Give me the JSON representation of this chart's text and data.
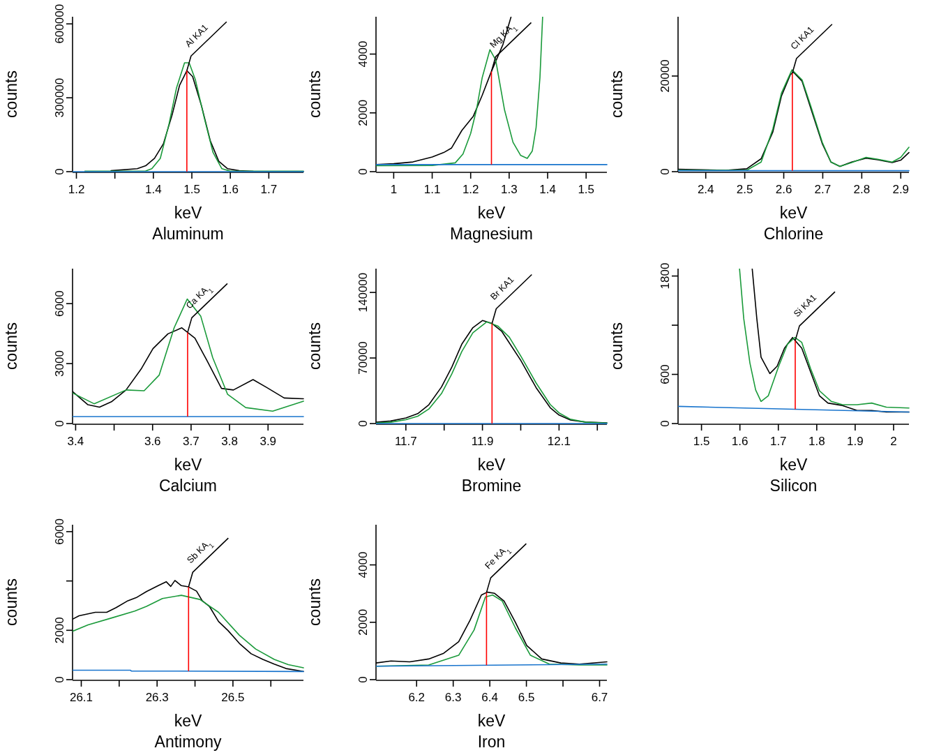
{
  "chart_data": [
    {
      "type": "line",
      "title": "Aluminum",
      "xlabel": "keV",
      "ylabel": "counts",
      "xlim": [
        1.19,
        1.79
      ],
      "ylim": [
        0,
        629000
      ],
      "xticks": [
        1.2,
        {
          "value": 1.3,
          "label": null
        },
        1.4,
        1.5,
        1.6,
        1.7
      ],
      "yticks": [
        0,
        300000,
        600000
      ],
      "series": [
        {
          "color": "#000000",
          "x": [
            1.29,
            1.358,
            1.38,
            1.403,
            1.426,
            1.449,
            1.468,
            1.487,
            1.502,
            1.525,
            1.548,
            1.57,
            1.593,
            1.623,
            1.66,
            1.79
          ],
          "values": [
            4000,
            12000,
            24000,
            54000,
            113000,
            232000,
            350000,
            410000,
            386000,
            268000,
            125000,
            42000,
            12000,
            4000,
            1000,
            0
          ]
        },
        {
          "color": "#1a9a3a",
          "x": [
            1.222,
            1.38,
            1.396,
            1.418,
            1.441,
            1.46,
            1.481,
            1.493,
            1.509,
            1.532,
            1.555,
            1.578,
            1.6,
            1.79
          ],
          "values": [
            2000,
            3000,
            12000,
            54000,
            196000,
            339000,
            442000,
            442000,
            374000,
            220000,
            78000,
            12000,
            2000,
            2000
          ]
        },
        {
          "color": "#1874cd",
          "x": [
            1.19,
            1.79
          ],
          "values": [
            0,
            0
          ]
        }
      ],
      "ref_lines": [
        {
          "axis": "x",
          "value": 1.487,
          "label": "Al KA1",
          "color": "#ff0000"
        }
      ]
    },
    {
      "type": "line",
      "title": "Magnesium",
      "xlabel": "keV",
      "ylabel": "counts",
      "xlim": [
        0.954,
        1.554
      ],
      "ylim": [
        0,
        5270
      ],
      "xticks": [
        1,
        1.1,
        1.2,
        1.3,
        1.4,
        1.5
      ],
      "yticks": [
        0,
        2000,
        4000
      ],
      "series": [
        {
          "color": "#000000",
          "x": [
            0.954,
            1.0,
            1.05,
            1.1,
            1.13,
            1.15,
            1.177,
            1.207,
            1.23,
            1.253,
            1.284,
            1.305
          ],
          "values": [
            240,
            270,
            330,
            500,
            650,
            800,
            1400,
            1890,
            2600,
            3380,
            4330,
            5270
          ]
        },
        {
          "color": "#1a9a3a",
          "x": [
            0.954,
            1.1,
            1.16,
            1.18,
            1.2,
            1.215,
            1.23,
            1.25,
            1.265,
            1.288,
            1.31,
            1.33,
            1.347,
            1.36,
            1.37,
            1.38,
            1.387
          ],
          "values": [
            200,
            210,
            300,
            600,
            1300,
            2100,
            3200,
            4150,
            3800,
            2100,
            1000,
            550,
            450,
            700,
            1500,
            3200,
            5270
          ]
        },
        {
          "color": "#1874cd",
          "x": [
            0.954,
            1.554
          ],
          "values": [
            240,
            240
          ]
        }
      ],
      "ref_lines": [
        {
          "axis": "x",
          "value": 1.254,
          "label": "Mg KA$_{1}$",
          "color": "#ff0000"
        }
      ]
    },
    {
      "type": "line",
      "title": "Chlorine",
      "xlabel": "keV",
      "ylabel": "counts",
      "xlim": [
        2.329,
        2.921
      ],
      "ylim": [
        0,
        32400
      ],
      "xticks": [
        2.4,
        2.5,
        2.6,
        2.7,
        2.8,
        2.9
      ],
      "yticks": [
        0,
        20000
      ],
      "series": [
        {
          "color": "#000000",
          "x": [
            2.329,
            2.452,
            2.505,
            2.542,
            2.572,
            2.594,
            2.617,
            2.625,
            2.647,
            2.669,
            2.699,
            2.721,
            2.744,
            2.774,
            2.811,
            2.841,
            2.878,
            2.9,
            2.921
          ],
          "values": [
            500,
            300,
            600,
            2700,
            8300,
            15800,
            20300,
            20800,
            18900,
            13300,
            5800,
            2000,
            1100,
            2000,
            2800,
            2500,
            1900,
            2400,
            4000
          ]
        },
        {
          "color": "#1a9a3a",
          "x": [
            2.329,
            2.505,
            2.542,
            2.572,
            2.594,
            2.621,
            2.647,
            2.669,
            2.699,
            2.721,
            2.744,
            2.774,
            2.811,
            2.841,
            2.878,
            2.9,
            2.921
          ],
          "values": [
            300,
            300,
            2000,
            8900,
            16400,
            21300,
            19200,
            13800,
            6100,
            2000,
            1100,
            1900,
            3000,
            2600,
            2000,
            3000,
            5100
          ]
        },
        {
          "color": "#1874cd",
          "x": [
            2.329,
            2.921
          ],
          "values": [
            200,
            200
          ]
        }
      ],
      "ref_lines": [
        {
          "axis": "x",
          "value": 2.622,
          "label": "Cl KA1",
          "color": "#ff0000"
        }
      ]
    },
    {
      "type": "line",
      "title": "Calcium",
      "xlabel": "keV",
      "ylabel": "counts",
      "xlim": [
        3.392,
        3.992
      ],
      "ylim": [
        0,
        7750
      ],
      "xticks": [
        3.4,
        {
          "value": 3.5,
          "label": null
        },
        3.6,
        3.7,
        3.8,
        3.9
      ],
      "yticks": [
        0,
        3000,
        6000
      ],
      "series": [
        {
          "color": "#000000",
          "x": [
            3.392,
            3.432,
            3.462,
            3.493,
            3.531,
            3.57,
            3.601,
            3.64,
            3.676,
            3.71,
            3.741,
            3.779,
            3.81,
            3.861,
            3.896,
            3.942,
            3.992
          ],
          "values": [
            1600,
            940,
            820,
            1090,
            1680,
            2720,
            3750,
            4490,
            4790,
            4270,
            3160,
            1760,
            1680,
            2200,
            1810,
            1280,
            1240
          ]
        },
        {
          "color": "#1a9a3a",
          "x": [
            3.392,
            3.448,
            3.531,
            3.578,
            3.617,
            3.656,
            3.69,
            3.725,
            3.756,
            3.795,
            3.842,
            3.912,
            3.992
          ],
          "values": [
            1530,
            990,
            1680,
            1640,
            2420,
            4790,
            6230,
            5380,
            3310,
            1460,
            800,
            620,
            1120
          ]
        },
        {
          "color": "#1874cd",
          "x": [
            3.392,
            3.992
          ],
          "values": [
            350,
            350
          ]
        }
      ],
      "ref_lines": [
        {
          "axis": "x",
          "value": 3.691,
          "label": "Ca KA$_{1}$",
          "color": "#ff0000"
        }
      ]
    },
    {
      "type": "line",
      "title": "Bromine",
      "xlabel": "keV",
      "ylabel": "counts",
      "xlim": [
        11.622,
        12.225
      ],
      "ylim": [
        0,
        165400
      ],
      "xticks": [
        11.7,
        {
          "value": 11.8,
          "label": null
        },
        11.9,
        {
          "value": 12.0,
          "label": null
        },
        12.1,
        {
          "value": 12.2,
          "label": null
        }
      ],
      "yticks": [
        0,
        70000,
        140000
      ],
      "series": [
        {
          "color": "#000000",
          "x": [
            11.622,
            11.66,
            11.7,
            11.731,
            11.76,
            11.793,
            11.82,
            11.846,
            11.875,
            11.9,
            11.925,
            11.95,
            12.0,
            12.04,
            12.077,
            12.1,
            12.13,
            12.17,
            12.225
          ],
          "values": [
            1400,
            2700,
            5900,
            10600,
            20100,
            39000,
            60300,
            84700,
            102400,
            110000,
            106900,
            98700,
            67500,
            38400,
            16900,
            9100,
            3700,
            1600,
            700
          ]
        },
        {
          "color": "#1a9a3a",
          "x": [
            11.622,
            11.66,
            11.7,
            11.731,
            11.76,
            11.793,
            11.82,
            11.846,
            11.875,
            11.911,
            11.94,
            11.97,
            12.0,
            12.04,
            12.077,
            12.1,
            12.13,
            12.17,
            12.225
          ],
          "values": [
            500,
            1400,
            4100,
            7800,
            15500,
            32000,
            53000,
            76800,
            96900,
            108500,
            104200,
            92300,
            72100,
            43400,
            20300,
            11400,
            4600,
            1400,
            500
          ]
        },
        {
          "color": "#1874cd",
          "x": [
            11.622,
            12.225
          ],
          "values": [
            0,
            0
          ]
        }
      ],
      "ref_lines": [
        {
          "axis": "x",
          "value": 11.925,
          "label": "Br KA1",
          "color": "#ff0000"
        }
      ]
    },
    {
      "type": "line",
      "title": "Silicon",
      "xlabel": "keV",
      "ylabel": "counts",
      "xlim": [
        1.439,
        2.04
      ],
      "ylim": [
        0,
        1890
      ],
      "xticks": [
        1.5,
        1.6,
        1.7,
        1.8,
        1.9,
        2
      ],
      "yticks": [
        0,
        600,
        {
          "value": 1200,
          "label": null
        },
        1800
      ],
      "series": [
        {
          "color": "#000000",
          "x": [
            1.632,
            1.644,
            1.655,
            1.678,
            1.697,
            1.716,
            1.737,
            1.761,
            1.784,
            1.807,
            1.829,
            1.867,
            1.905,
            1.943,
            1.981,
            2.04
          ],
          "values": [
            1890,
            1280,
            810,
            610,
            700,
            920,
            1050,
            920,
            630,
            340,
            250,
            220,
            160,
            160,
            140,
            140
          ]
        },
        {
          "color": "#1a9a3a",
          "x": [
            1.599,
            1.61,
            1.626,
            1.641,
            1.655,
            1.674,
            1.701,
            1.724,
            1.743,
            1.761,
            1.784,
            1.807,
            1.838,
            1.867,
            1.905,
            1.943,
            1.981,
            2.04
          ],
          "values": [
            1890,
            1280,
            740,
            410,
            270,
            340,
            700,
            970,
            1050,
            990,
            670,
            400,
            270,
            230,
            230,
            250,
            200,
            190
          ]
        },
        {
          "color": "#1874cd",
          "x": [
            1.439,
            2.04
          ],
          "values": [
            210,
            140
          ]
        }
      ],
      "ref_lines": [
        {
          "axis": "x",
          "value": 1.744,
          "label": "Si KA1",
          "color": "#ff0000"
        }
      ]
    },
    {
      "type": "line",
      "title": "Antimony",
      "xlabel": "keV",
      "ylabel": "counts",
      "xlim": [
        26.077,
        26.686
      ],
      "ylim": [
        0,
        6280
      ],
      "xticks": [
        26.1,
        {
          "value": 26.2,
          "label": null
        },
        26.3,
        {
          "value": 26.4,
          "label": null
        },
        26.5,
        {
          "value": 26.6,
          "label": null
        }
      ],
      "yticks": [
        0,
        2000,
        {
          "value": 4000,
          "label": null
        },
        6000
      ],
      "series": [
        {
          "color": "#000000",
          "x": [
            26.077,
            26.094,
            26.137,
            26.167,
            26.192,
            26.223,
            26.247,
            26.272,
            26.303,
            26.324,
            26.336,
            26.347,
            26.364,
            26.383,
            26.404,
            26.419,
            26.438,
            26.462,
            26.487,
            26.517,
            26.548,
            26.579,
            26.609,
            26.64,
            26.686
          ],
          "values": [
            2450,
            2590,
            2730,
            2730,
            2920,
            3200,
            3340,
            3570,
            3810,
            3970,
            3780,
            4020,
            3810,
            3760,
            3590,
            3200,
            2970,
            2360,
            1990,
            1470,
            1050,
            820,
            630,
            450,
            330
          ]
        },
        {
          "color": "#1a9a3a",
          "x": [
            26.077,
            26.118,
            26.18,
            26.241,
            26.272,
            26.314,
            26.364,
            26.413,
            26.462,
            26.517,
            26.56,
            26.609,
            26.646,
            26.686
          ],
          "values": [
            1960,
            2220,
            2500,
            2780,
            2970,
            3290,
            3420,
            3250,
            2730,
            1800,
            1240,
            820,
            610,
            480
          ]
        },
        {
          "color": "#1874cd",
          "x": [
            26.077,
            26.23,
            26.232,
            26.686
          ],
          "values": [
            380,
            380,
            350,
            330
          ]
        }
      ],
      "ref_lines": [
        {
          "axis": "x",
          "value": 26.383,
          "label": "Sb KA$_{1}$",
          "color": "#ff0000"
        }
      ]
    },
    {
      "type": "line",
      "title": "Iron",
      "xlabel": "keV",
      "ylabel": "counts",
      "xlim": [
        6.089,
        6.72
      ],
      "ylim": [
        0,
        5400
      ],
      "xticks": [
        6.2,
        6.3,
        6.4,
        6.5,
        {
          "value": 6.6,
          "label": null
        },
        6.7
      ],
      "yticks": [
        0,
        2000,
        4000
      ],
      "series": [
        {
          "color": "#000000",
          "x": [
            6.089,
            6.13,
            6.181,
            6.233,
            6.274,
            6.315,
            6.346,
            6.377,
            6.393,
            6.413,
            6.439,
            6.47,
            6.501,
            6.542,
            6.594,
            6.645,
            6.72
          ],
          "values": [
            580,
            650,
            620,
            720,
            920,
            1320,
            2070,
            2950,
            3050,
            3010,
            2740,
            2000,
            1190,
            720,
            580,
            540,
            620
          ]
        },
        {
          "color": "#1a9a3a",
          "x": [
            6.089,
            6.233,
            6.315,
            6.357,
            6.388,
            6.408,
            6.434,
            6.47,
            6.511,
            6.563,
            6.645,
            6.72
          ],
          "values": [
            470,
            510,
            850,
            1730,
            2880,
            2950,
            2740,
            1800,
            850,
            540,
            510,
            510
          ]
        },
        {
          "color": "#1874cd",
          "x": [
            6.089,
            6.72
          ],
          "values": [
            470,
            540
          ]
        }
      ],
      "ref_lines": [
        {
          "axis": "x",
          "value": 6.391,
          "label": "Fe KA$_{1}$",
          "color": "#ff0000"
        }
      ]
    }
  ]
}
